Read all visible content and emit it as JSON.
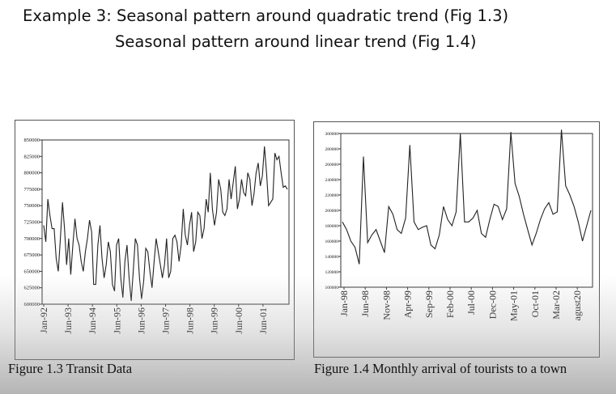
{
  "slide": {
    "title_line1": "Example 3: Seasonal pattern around quadratic trend (Fig 1.3)",
    "title_line2": "Seasonal pattern around linear trend (Fig 1.4)"
  },
  "chart_data": [
    {
      "type": "line",
      "caption": "Figure 1.3 Transit Data",
      "ylim": [
        600000,
        850000
      ],
      "yticks": [
        600000,
        625000,
        650000,
        675000,
        700000,
        725000,
        750000,
        775000,
        800000,
        825000,
        850000
      ],
      "xlim": [
        0,
        120
      ],
      "xticks": [
        {
          "label": "Jan-92",
          "pos": 0
        },
        {
          "label": "Jun-93",
          "pos": 12
        },
        {
          "label": "Jun-94",
          "pos": 24
        },
        {
          "label": "Jun-95",
          "pos": 36
        },
        {
          "label": "Jun-96",
          "pos": 48
        },
        {
          "label": "Jun-97",
          "pos": 60
        },
        {
          "label": "Jun-98",
          "pos": 72
        },
        {
          "label": "Jun-99",
          "pos": 84
        },
        {
          "label": "Jun-00",
          "pos": 96
        },
        {
          "label": "Jun-01",
          "pos": 108
        }
      ],
      "grid": false,
      "series": [
        {
          "color": "#222222",
          "values": [
            720000,
            695000,
            760000,
            735000,
            715000,
            715000,
            670000,
            650000,
            700000,
            755000,
            715000,
            660000,
            700000,
            645000,
            690000,
            730000,
            700000,
            690000,
            665000,
            650000,
            680000,
            700000,
            728000,
            710000,
            630000,
            630000,
            690000,
            720000,
            670000,
            640000,
            660000,
            695000,
            680000,
            630000,
            620000,
            690000,
            700000,
            640000,
            610000,
            665000,
            690000,
            640000,
            605000,
            650000,
            700000,
            690000,
            640000,
            608000,
            635000,
            685000,
            680000,
            650000,
            625000,
            665000,
            700000,
            680000,
            660000,
            640000,
            660000,
            700000,
            640000,
            650000,
            700000,
            705000,
            695000,
            665000,
            690000,
            745000,
            705000,
            690000,
            720000,
            740000,
            680000,
            695000,
            740000,
            735000,
            700000,
            715000,
            760000,
            740000,
            800000,
            745000,
            720000,
            740000,
            790000,
            775000,
            740000,
            735000,
            745000,
            790000,
            760000,
            785000,
            810000,
            745000,
            760000,
            790000,
            770000,
            765000,
            800000,
            790000,
            750000,
            768000,
            800000,
            815000,
            780000,
            795000,
            840000,
            800000,
            750000,
            755000,
            760000,
            830000,
            820000,
            825000,
            800000,
            778000,
            780000,
            775000
          ]
        }
      ]
    },
    {
      "type": "line",
      "caption": "Figure 1.4 Monthly arrival of tourists to a town",
      "ylim": [
        100000,
        300000
      ],
      "yticks": [
        100000,
        120000,
        140000,
        160000,
        180000,
        200000,
        220000,
        240000,
        260000,
        280000,
        300000
      ],
      "xticks": [
        "Jan-98",
        "Jun-98",
        "Nov-98",
        "Apr-99",
        "Sep-99",
        "Feb-00",
        "Jul-00",
        "Dec-00",
        "May-01",
        "Oct-01",
        "Mar-02",
        "agust20"
      ],
      "grid": false,
      "series": [
        {
          "color": "#222222",
          "values": [
            185000,
            175000,
            160000,
            152000,
            130000,
            270000,
            158000,
            168000,
            175000,
            160000,
            145000,
            205000,
            195000,
            175000,
            170000,
            190000,
            285000,
            185000,
            175000,
            178000,
            180000,
            155000,
            150000,
            168000,
            205000,
            188000,
            180000,
            198000,
            300000,
            185000,
            185000,
            190000,
            200000,
            170000,
            165000,
            188000,
            208000,
            205000,
            188000,
            202000,
            302000,
            235000,
            218000,
            195000,
            175000,
            155000,
            170000,
            188000,
            202000,
            210000,
            195000,
            198000,
            305000,
            232000,
            220000,
            205000,
            185000,
            160000,
            180000,
            200000
          ]
        }
      ]
    }
  ]
}
